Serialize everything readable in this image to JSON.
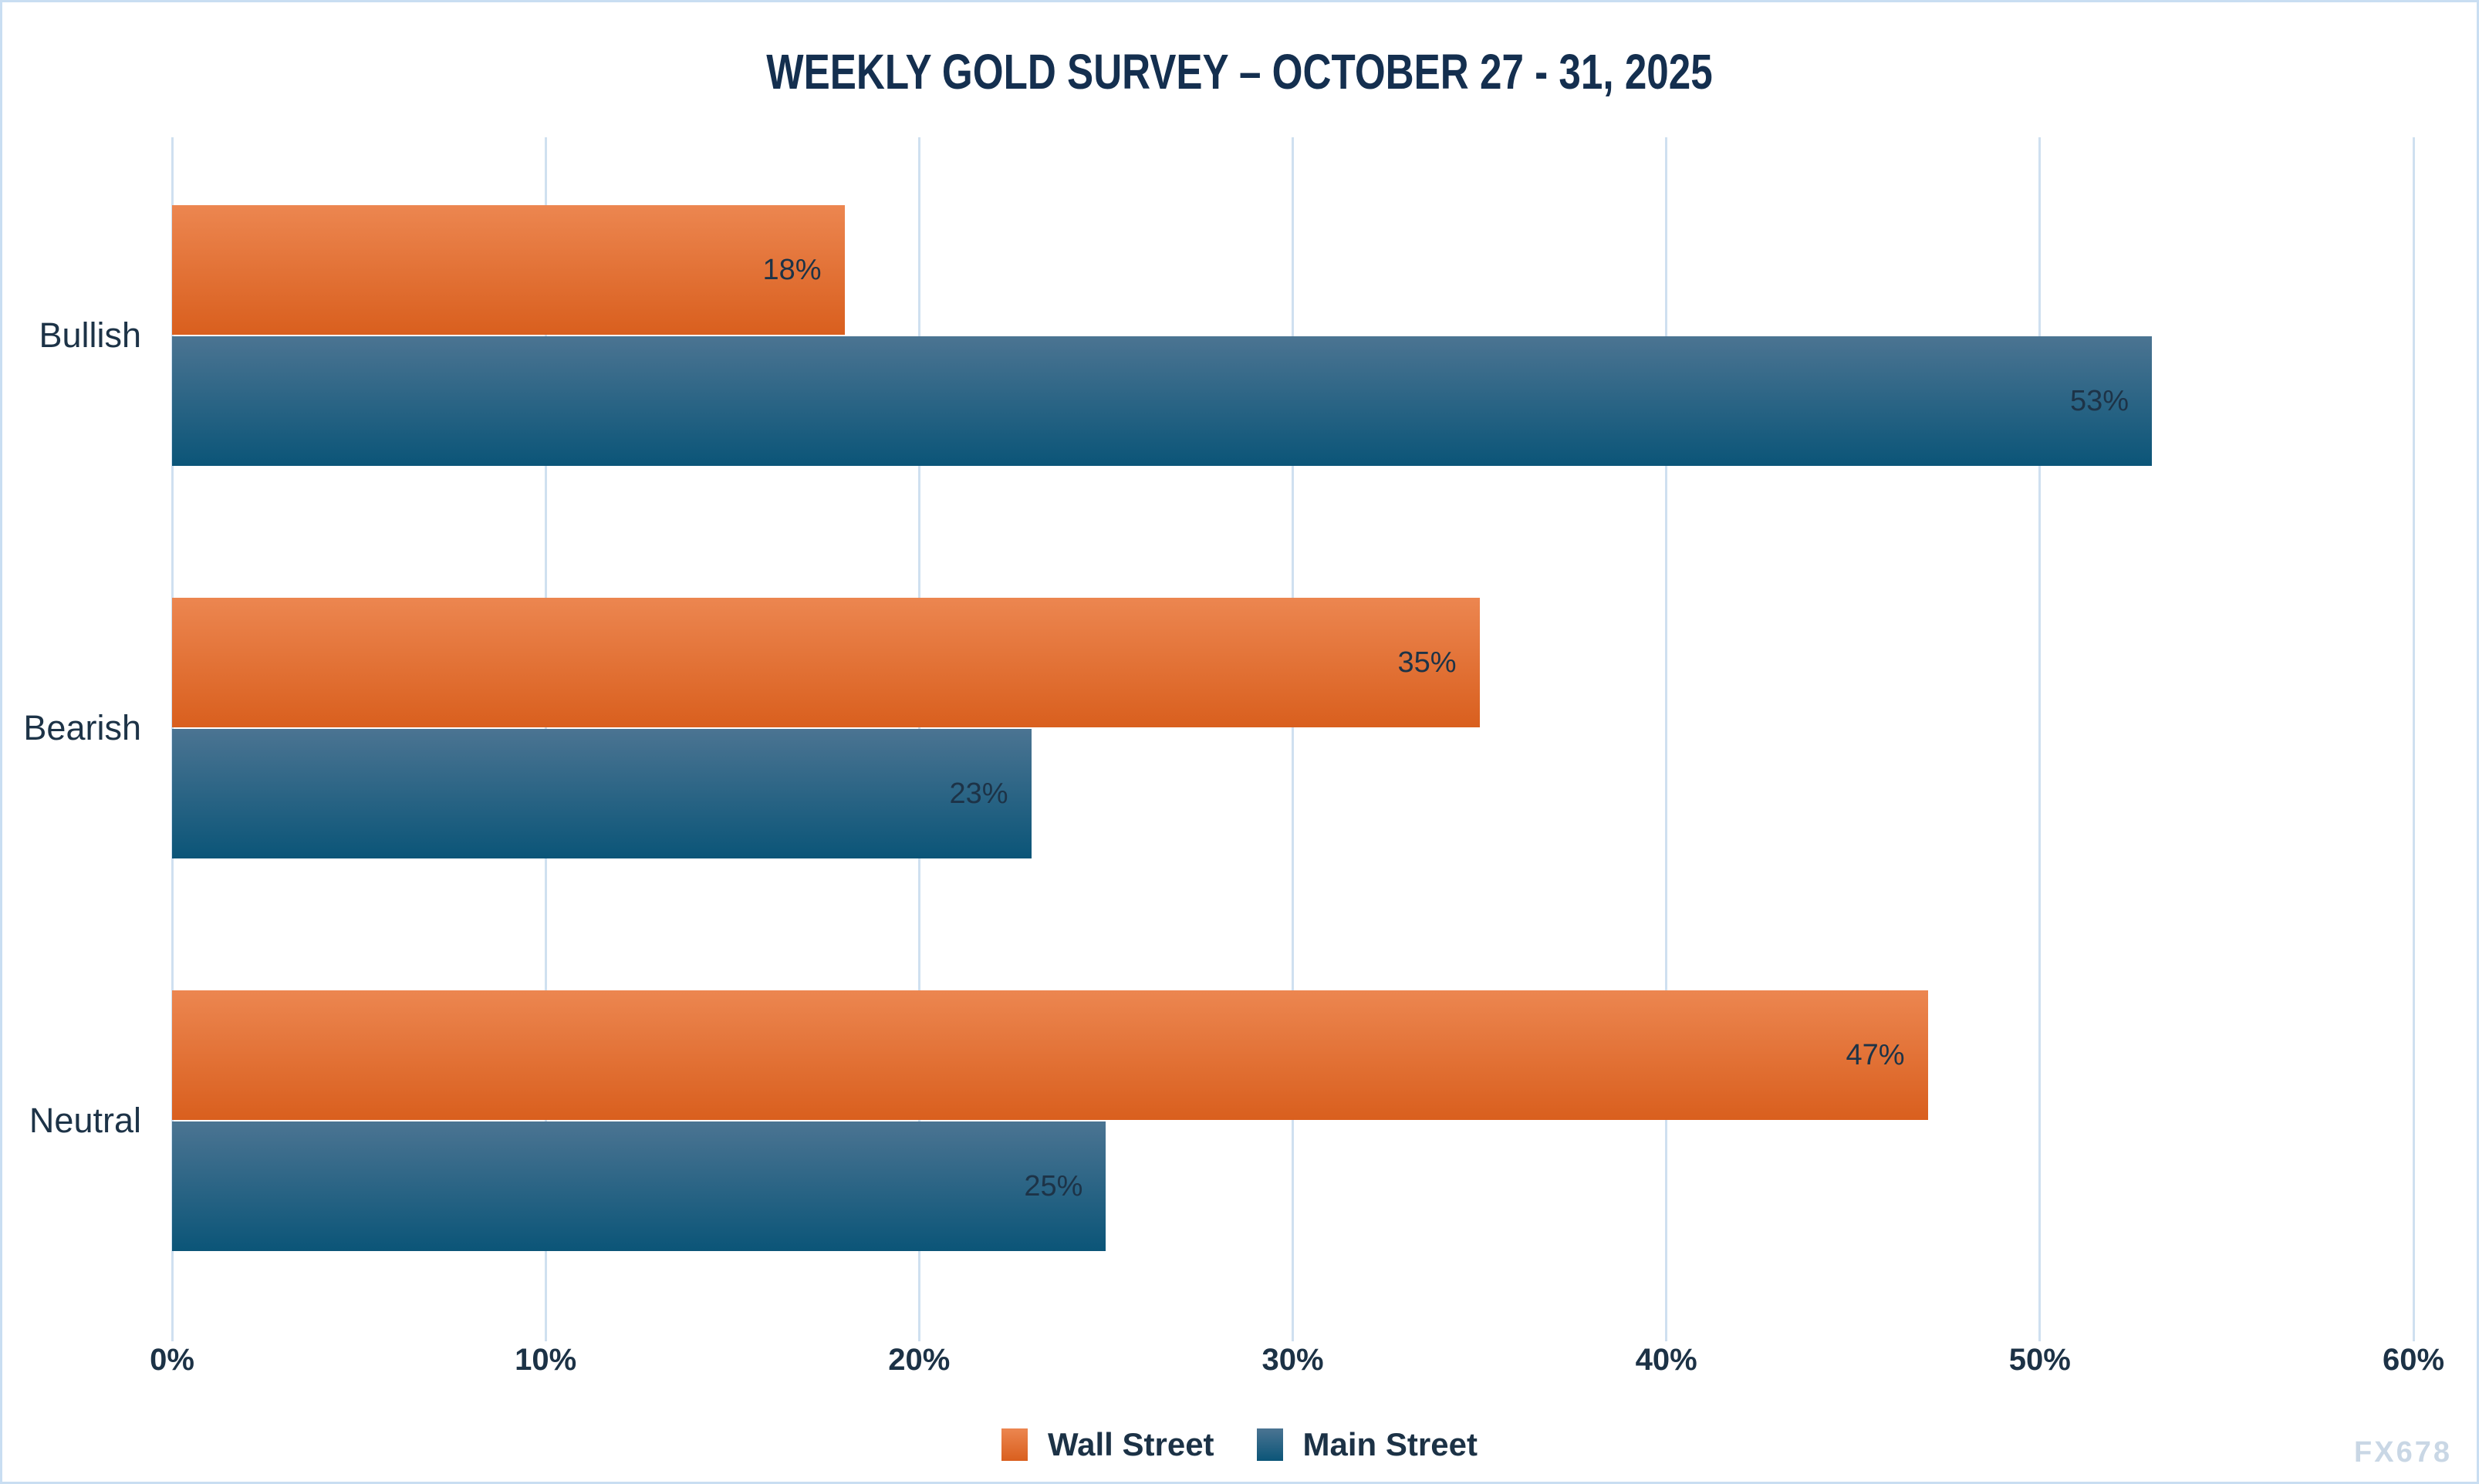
{
  "watermark": "FX678",
  "chart_data": {
    "type": "bar",
    "orientation": "horizontal",
    "title": "WEEKLY GOLD SURVEY – OCTOBER 27 - 31, 2025",
    "categories": [
      "Bullish",
      "Bearish",
      "Neutral"
    ],
    "series": [
      {
        "name": "Wall Street",
        "values": [
          18,
          35,
          47
        ],
        "color_top": "#EC8650",
        "color_bottom": "#D95F1E"
      },
      {
        "name": "Main Street",
        "values": [
          53,
          23,
          25
        ],
        "color_top": "#4B7492",
        "color_bottom": "#0B5578"
      }
    ],
    "data_labels": {
      "Wall Street": [
        "18%",
        "35%",
        "47%"
      ],
      "Main Street": [
        "53%",
        "23%",
        "25%"
      ]
    },
    "value_suffix": "%",
    "x_ticks": [
      "0%",
      "10%",
      "20%",
      "30%",
      "40%",
      "50%",
      "60%"
    ],
    "xlim": [
      0,
      60
    ],
    "grid": true,
    "legend_position": "bottom",
    "text_color": "#1D3347",
    "grid_color": "#CFE0F0",
    "frame_border_color": "#C9DEF2"
  }
}
